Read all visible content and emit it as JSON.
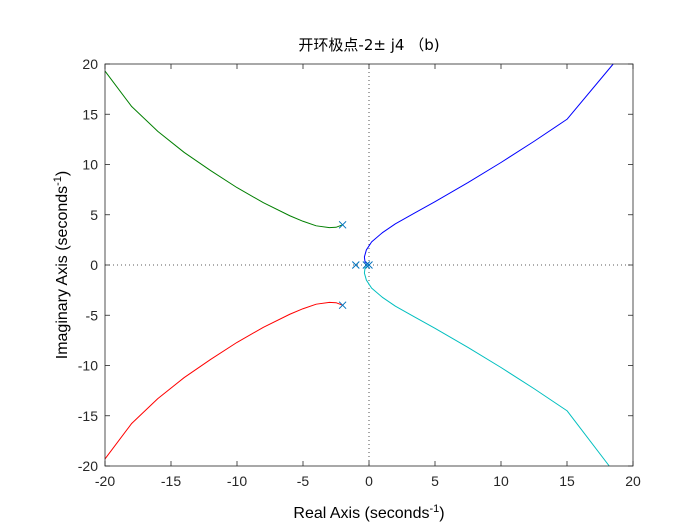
{
  "chart_data": {
    "type": "line",
    "title": "开环极点-2± j4 （b)",
    "xlabel": "Real Axis (seconds",
    "ylabel": "Imaginary Axis (seconds",
    "unit_exponent": "-1",
    "label_close": ")",
    "xlim": [
      -20,
      20
    ],
    "ylim": [
      -20,
      20
    ],
    "xticks": [
      -20,
      -15,
      -10,
      -5,
      0,
      5,
      10,
      15,
      20
    ],
    "yticks": [
      -20,
      -15,
      -10,
      -5,
      0,
      5,
      10,
      15,
      20
    ],
    "xtick_labels": [
      "-20",
      "-15",
      "-10",
      "-5",
      "0",
      "5",
      "10",
      "15",
      "20"
    ],
    "ytick_labels": [
      "-20",
      "-15",
      "-10",
      "-5",
      "0",
      "5",
      "10",
      "15",
      "20"
    ],
    "grid": false,
    "reference_lines": {
      "x": 0,
      "y": 0,
      "style": "dotted"
    },
    "series": [
      {
        "color": "#0000ff",
        "points": [
          [
            0,
            0
          ],
          [
            -0.3,
            0.3
          ],
          [
            -0.35,
            0.8
          ],
          [
            -0.2,
            1.5
          ],
          [
            0.2,
            2.3
          ],
          [
            1,
            3.2
          ],
          [
            2,
            4.1
          ],
          [
            3.5,
            5.2
          ],
          [
            5,
            6.3
          ],
          [
            7.5,
            8.2
          ],
          [
            10,
            10.2
          ],
          [
            12.5,
            12.3
          ],
          [
            15,
            14.5
          ],
          [
            18.5,
            20
          ]
        ]
      },
      {
        "color": "#00bfbf",
        "points": [
          [
            0,
            0
          ],
          [
            -0.3,
            -0.3
          ],
          [
            -0.35,
            -0.8
          ],
          [
            -0.2,
            -1.5
          ],
          [
            0.2,
            -2.3
          ],
          [
            1,
            -3.2
          ],
          [
            2,
            -4.1
          ],
          [
            3.5,
            -5.2
          ],
          [
            5,
            -6.3
          ],
          [
            7.5,
            -8.2
          ],
          [
            10,
            -10.2
          ],
          [
            12.5,
            -12.3
          ],
          [
            15,
            -14.5
          ],
          [
            18.2,
            -20
          ]
        ]
      },
      {
        "color": "#007f00",
        "points": [
          [
            -2,
            4
          ],
          [
            -2.5,
            3.75
          ],
          [
            -3,
            3.72
          ],
          [
            -4,
            3.9
          ],
          [
            -5,
            4.35
          ],
          [
            -6,
            4.9
          ],
          [
            -8,
            6.2
          ],
          [
            -10,
            7.7
          ],
          [
            -12,
            9.4
          ],
          [
            -14,
            11.2
          ],
          [
            -16,
            13.3
          ],
          [
            -18,
            15.8
          ],
          [
            -20,
            19.3
          ]
        ]
      },
      {
        "color": "#ff0000",
        "points": [
          [
            -2,
            -4
          ],
          [
            -2.5,
            -3.75
          ],
          [
            -3,
            -3.72
          ],
          [
            -4,
            -3.9
          ],
          [
            -5,
            -4.35
          ],
          [
            -6,
            -4.9
          ],
          [
            -8,
            -6.2
          ],
          [
            -10,
            -7.7
          ],
          [
            -12,
            -9.4
          ],
          [
            -14,
            -11.2
          ],
          [
            -16,
            -13.3
          ],
          [
            -18,
            -15.8
          ],
          [
            -20,
            -19.3
          ]
        ]
      }
    ],
    "poles": [
      [
        -2,
        4
      ],
      [
        -2,
        -4
      ],
      [
        -1,
        0
      ],
      [
        -0.2,
        0
      ],
      [
        0,
        0
      ]
    ],
    "pole_marker": "x",
    "pole_color": "#0072bd"
  }
}
